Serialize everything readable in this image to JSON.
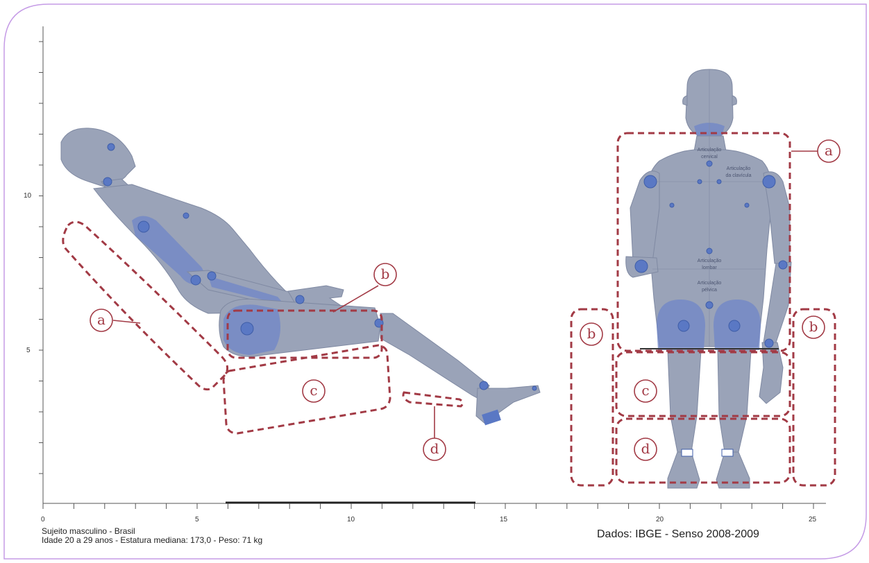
{
  "axis": {
    "x_ticks": [
      "0",
      "5",
      "10",
      "15",
      "20",
      "25"
    ],
    "y_ticks": [
      "10",
      "5"
    ]
  },
  "zone_labels": {
    "side": {
      "a": "a",
      "b": "b",
      "c": "c",
      "d": "d"
    },
    "front": {
      "a": "a",
      "b_left": "b",
      "b_right": "b",
      "c": "c",
      "d": "d"
    }
  },
  "joints": {
    "cervical_1": "Articulação",
    "cervical_2": "cervical",
    "clavicle_1": "Articulação",
    "clavicle_2": "da clavícula",
    "lumbar_1": "Articulação",
    "lumbar_2": "lombar",
    "pelvic_1": "Articulação",
    "pelvic_2": "pélvica"
  },
  "caption": {
    "line1": "Sujeito masculino - Brasil",
    "line2": "Idade 20 a 29 anos - Estatura mediana: 173,0 - Peso: 71 kg"
  },
  "source": "Dados: IBGE - Senso 2008-2009",
  "colors": {
    "frame": "#c59be6",
    "body": "#9aa3b8",
    "joint": "#5a78c4",
    "zone": "#a23a45"
  }
}
